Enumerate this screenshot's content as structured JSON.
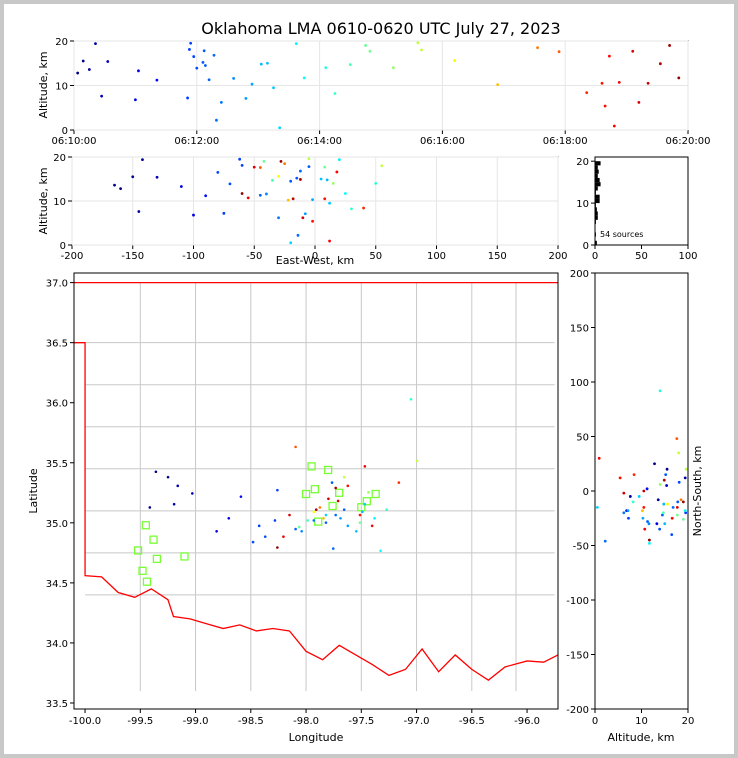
{
  "figure": {
    "title": "Oklahoma LMA 0610-0620 UTC July 27, 2023",
    "source_count_label": "54 sources"
  },
  "colors": {
    "state_border": "#ff0000",
    "county_lines": "#c8c8c8",
    "station_marker": "#77ff33",
    "grid": "#e6e6e6"
  },
  "chart_data": [
    {
      "id": "time_altitude",
      "type": "scatter",
      "title": "",
      "xlabel": "",
      "ylabel": "Altitude, km",
      "x_ticks": [
        "06:10:00",
        "06:12:00",
        "06:14:00",
        "06:16:00",
        "06:18:00",
        "06:20:00"
      ],
      "xlim_minutes": [
        0,
        10
      ],
      "ylim": [
        0,
        20
      ],
      "y_ticks": [
        0,
        10,
        20
      ],
      "grid": true,
      "colormap": "jet, colored by time"
    },
    {
      "id": "ew_altitude",
      "type": "scatter",
      "xlabel": "East-West, km",
      "ylabel": "Altitude, km",
      "xlim": [
        -200,
        200
      ],
      "x_ticks": [
        -200,
        -150,
        -100,
        -50,
        0,
        50,
        100,
        150,
        200
      ],
      "ylim": [
        0,
        20
      ],
      "y_ticks": [
        0,
        10,
        20
      ],
      "grid": true
    },
    {
      "id": "altitude_histogram",
      "type": "bar",
      "xlabel": "",
      "ylabel": "",
      "xlim": [
        0,
        100
      ],
      "x_ticks": [
        0,
        50,
        100
      ],
      "ylim": [
        0,
        21
      ],
      "y_ticks": [
        0,
        10,
        20
      ],
      "annotation": "54 sources"
    },
    {
      "id": "plan_view",
      "type": "scatter",
      "xlabel": "Longitude",
      "ylabel": "Latitude",
      "xlim": [
        -100.1,
        -95.72
      ],
      "ylim": [
        33.45,
        37.08
      ],
      "x_ticks": [
        -100.0,
        -99.5,
        -99.0,
        -98.5,
        -98.0,
        -97.5,
        -97.0,
        -96.5,
        -96.0
      ],
      "y_ticks": [
        33.5,
        34.0,
        34.5,
        35.0,
        35.5,
        36.0,
        36.5,
        37.0
      ],
      "stations": [
        [
          -97.95,
          35.47
        ],
        [
          -97.92,
          35.28
        ],
        [
          -98.0,
          35.24
        ],
        [
          -97.89,
          35.01
        ],
        [
          -97.8,
          35.44
        ],
        [
          -97.76,
          35.14
        ],
        [
          -97.7,
          35.25
        ],
        [
          -97.5,
          35.13
        ],
        [
          -97.45,
          35.18
        ],
        [
          -97.37,
          35.24
        ],
        [
          -99.45,
          34.98
        ],
        [
          -99.38,
          34.86
        ],
        [
          -99.52,
          34.77
        ],
        [
          -99.35,
          34.7
        ],
        [
          -99.1,
          34.72
        ],
        [
          -99.48,
          34.6
        ],
        [
          -99.44,
          34.51
        ]
      ]
    },
    {
      "id": "altitude_ns",
      "type": "scatter",
      "xlabel": "Altitude, km",
      "ylabel": "North-South, km",
      "xlim": [
        0,
        20
      ],
      "x_ticks": [
        0,
        10,
        20
      ],
      "ylim": [
        -200,
        200
      ],
      "y_ticks": [
        -200,
        -150,
        -100,
        -50,
        0,
        50,
        100,
        150,
        200
      ]
    },
    {
      "id": "sources",
      "type": "scatter",
      "fields": [
        "time_minutes_after_0610",
        "east_west_km",
        "north_south_km",
        "altitude_km"
      ],
      "points": [
        [
          0.06,
          -160,
          25,
          12.8
        ],
        [
          0.15,
          -150,
          20,
          15.5
        ],
        [
          0.25,
          -165,
          -8,
          13.6
        ],
        [
          0.35,
          -142,
          12,
          19.4
        ],
        [
          0.45,
          -145,
          -5,
          7.6
        ],
        [
          0.55,
          -130,
          5,
          15.4
        ],
        [
          1.0,
          -100,
          -18,
          6.8
        ],
        [
          1.05,
          -110,
          -30,
          13.3
        ],
        [
          1.35,
          -90,
          2,
          11.2
        ],
        [
          1.85,
          -75,
          -25,
          7.2
        ],
        [
          1.88,
          -60,
          8,
          18.1
        ],
        [
          1.9,
          -62,
          -20,
          19.5
        ],
        [
          1.95,
          -80,
          -40,
          16.5
        ],
        [
          2.0,
          -70,
          -35,
          13.9
        ],
        [
          2.1,
          -15,
          15,
          15.2
        ],
        [
          2.12,
          -5,
          -10,
          17.8
        ],
        [
          2.14,
          -20,
          -22,
          14.5
        ],
        [
          2.2,
          -45,
          -28,
          11.3
        ],
        [
          2.28,
          -12,
          -15,
          16.8
        ],
        [
          2.32,
          -14,
          -46,
          2.2
        ],
        [
          2.4,
          -30,
          -20,
          6.2
        ],
        [
          2.6,
          -40,
          -30,
          11.6
        ],
        [
          2.8,
          -8,
          -18,
          7.1
        ],
        [
          2.9,
          -2,
          -25,
          10.3
        ],
        [
          3.05,
          10,
          -12,
          14.8
        ],
        [
          3.15,
          5,
          -30,
          15.0
        ],
        [
          3.25,
          12,
          -5,
          9.5
        ],
        [
          3.35,
          -20,
          -15,
          0.5
        ],
        [
          3.62,
          20,
          -18,
          19.4
        ],
        [
          3.75,
          25,
          -48,
          11.7
        ],
        [
          4.1,
          50,
          92,
          14.0
        ],
        [
          4.25,
          30,
          -10,
          8.2
        ],
        [
          4.5,
          -35,
          -20,
          14.7
        ],
        [
          4.75,
          -42,
          -26,
          19.0
        ],
        [
          4.82,
          8,
          -22,
          17.7
        ],
        [
          5.2,
          15,
          6,
          14.0
        ],
        [
          5.6,
          -5,
          20,
          19.6
        ],
        [
          5.66,
          55,
          35,
          18.0
        ],
        [
          6.2,
          -30,
          -12,
          15.6
        ],
        [
          6.9,
          -22,
          -18,
          10.2
        ],
        [
          7.55,
          -25,
          -8,
          18.5
        ],
        [
          7.9,
          -45,
          48,
          17.6
        ],
        [
          8.35,
          40,
          15,
          8.4
        ],
        [
          8.65,
          -2,
          12,
          5.4
        ],
        [
          8.72,
          18,
          -25,
          16.6
        ],
        [
          8.8,
          12,
          30,
          0.9
        ],
        [
          8.88,
          -55,
          -35,
          10.7
        ],
        [
          9.1,
          -50,
          -15,
          17.7
        ],
        [
          9.35,
          -18,
          0,
          10.5
        ],
        [
          9.55,
          -12,
          10,
          14.9
        ],
        [
          9.85,
          -60,
          -45,
          11.7
        ],
        [
          9.7,
          -28,
          -10,
          19.0
        ],
        [
          9.2,
          -10,
          -2,
          6.2
        ],
        [
          8.6,
          8,
          -15,
          10.5
        ]
      ]
    }
  ]
}
